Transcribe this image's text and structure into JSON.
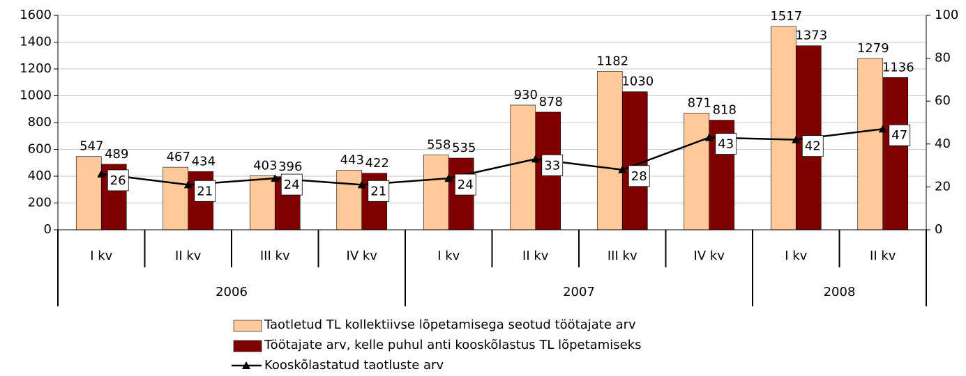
{
  "chart_data": {
    "type": "bar",
    "categories": [
      {
        "quarter": "I kv",
        "year": "2006"
      },
      {
        "quarter": "II kv",
        "year": "2006"
      },
      {
        "quarter": "III kv",
        "year": "2006"
      },
      {
        "quarter": "IV kv",
        "year": "2006"
      },
      {
        "quarter": "I kv",
        "year": "2007"
      },
      {
        "quarter": "II kv",
        "year": "2007"
      },
      {
        "quarter": "III kv",
        "year": "2007"
      },
      {
        "quarter": "IV kv",
        "year": "2007"
      },
      {
        "quarter": "I kv",
        "year": "2008"
      },
      {
        "quarter": "II kv",
        "year": "2008"
      }
    ],
    "series": [
      {
        "name": "Taotletud TL kollektiivse lõpetamisega seotud töötajate arv",
        "color": "#ffc999",
        "type": "bar",
        "values": [
          547,
          467,
          403,
          443,
          558,
          930,
          1182,
          871,
          1517,
          1279
        ]
      },
      {
        "name": "Töötajate arv, kelle puhul anti kooskõlastus TL lõpetamiseks",
        "color": "#800000",
        "type": "bar",
        "values": [
          489,
          434,
          396,
          422,
          535,
          878,
          1030,
          818,
          1373,
          1136
        ]
      },
      {
        "name": "Kooskõlastatud taotluste arv",
        "color": "#000000",
        "type": "line",
        "axis": "y2",
        "values": [
          26,
          21,
          24,
          21,
          24,
          33,
          28,
          43,
          42,
          47
        ]
      }
    ],
    "ylim": [
      0,
      1600
    ],
    "yticks": [
      0,
      200,
      400,
      600,
      800,
      1000,
      1200,
      1400,
      1600
    ],
    "y2lim": [
      0,
      100
    ],
    "y2ticks": [
      0,
      20,
      40,
      60,
      80,
      100
    ],
    "grid": true,
    "legend": "bottom"
  }
}
